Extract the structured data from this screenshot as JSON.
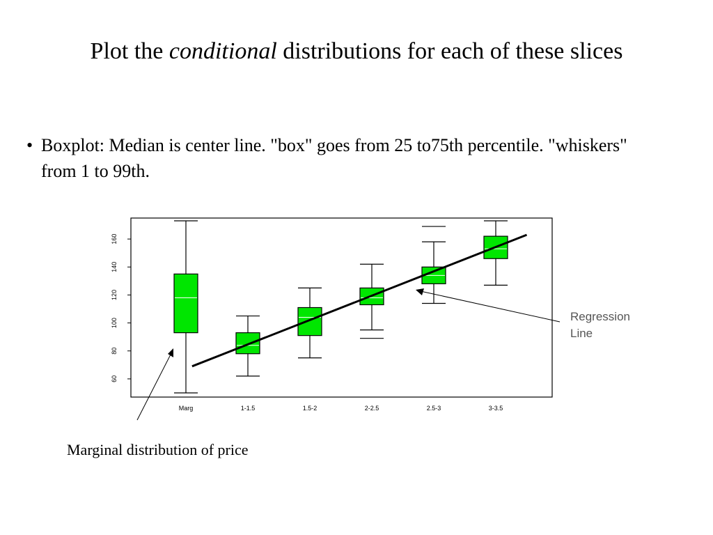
{
  "slide": {
    "title_prefix": "Plot the ",
    "title_emph": "conditional",
    "title_suffix": " distributions for each of these slices",
    "bullet_symbol": "•",
    "bullet_text": "Boxplot: Median is center line. \"box\" goes from 25 to75th percentile. \"whiskers\" from 1 to 99th.",
    "caption": "Marginal distribution of price"
  },
  "chart_data": {
    "type": "boxplot",
    "categories": [
      "Marg",
      "1-1.5",
      "1.5-2",
      "2-2.5",
      "2.5-3",
      "3-3.5"
    ],
    "ylim": [
      47,
      175
    ],
    "yticks": [
      60,
      80,
      100,
      120,
      140,
      160
    ],
    "boxes": [
      {
        "category": "Marg",
        "whisker_low": 50,
        "q1": 93,
        "median": 118,
        "q3": 135,
        "whisker_high": 173
      },
      {
        "category": "1-1.5",
        "whisker_low": 62,
        "q1": 78,
        "median": 84,
        "q3": 93,
        "whisker_high": 105
      },
      {
        "category": "1.5-2",
        "whisker_low": 75,
        "q1": 91,
        "median": 104,
        "q3": 111,
        "whisker_high": 125
      },
      {
        "category": "2-2.5",
        "whisker_low": 95,
        "q1": 113,
        "median": 118,
        "q3": 125,
        "whisker_high": 142,
        "extra_low": 89
      },
      {
        "category": "2.5-3",
        "whisker_low": 114,
        "q1": 128,
        "median": 134,
        "q3": 140,
        "whisker_high": 158,
        "extra_high": 169
      },
      {
        "category": "3-3.5",
        "whisker_low": 127,
        "q1": 146,
        "median": 153,
        "q3": 162,
        "whisker_high": 173
      }
    ],
    "regression_line": {
      "start": {
        "category_index": 0.1,
        "y": 69
      },
      "end": {
        "category_index": 5.5,
        "y": 163
      }
    },
    "annotations": [
      {
        "text_lines": [
          "Regression",
          "Line"
        ],
        "points_to": "regression-line"
      },
      {
        "text": "Marginal distribution of price",
        "points_to": "Marg"
      }
    ],
    "colors": {
      "box_fill": "#00e600",
      "median": "#ffffff",
      "line": "#000000"
    },
    "grid": false
  }
}
